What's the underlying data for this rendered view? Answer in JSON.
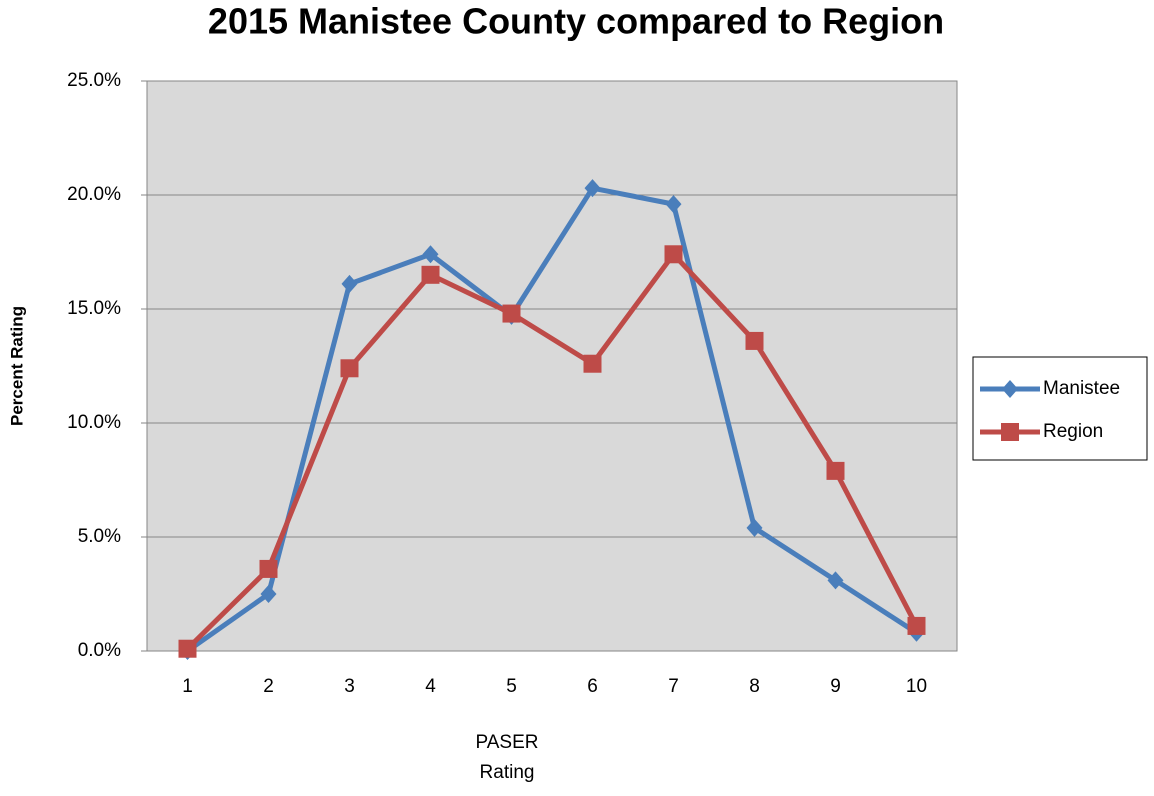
{
  "chart_data": {
    "type": "line",
    "title": "2015 Manistee County compared to Region",
    "y_label": "Percent Rating",
    "x_label": "PASER Rating",
    "categories": [
      1,
      2,
      3,
      4,
      5,
      6,
      7,
      8,
      9,
      10
    ],
    "series": [
      {
        "name": "Manistee",
        "color": "#4a7ebb",
        "marker": "diamond",
        "values": [
          0.0,
          2.5,
          16.1,
          17.4,
          14.7,
          20.3,
          19.6,
          5.4,
          3.1,
          0.8
        ]
      },
      {
        "name": "Region",
        "color": "#be4b48",
        "marker": "square",
        "values": [
          0.1,
          3.6,
          12.4,
          16.5,
          14.8,
          12.6,
          17.4,
          13.6,
          7.9,
          1.1
        ]
      }
    ],
    "ylim": [
      0,
      25
    ],
    "yticks": [
      {
        "value": 0,
        "label": "0.0%"
      },
      {
        "value": 5,
        "label": "5.0%"
      },
      {
        "value": 10,
        "label": "10.0%"
      },
      {
        "value": 15,
        "label": "15.0%"
      },
      {
        "value": 20,
        "label": "20.0%"
      },
      {
        "value": 25,
        "label": "25.0%"
      }
    ],
    "grid": true,
    "legend": "right"
  }
}
